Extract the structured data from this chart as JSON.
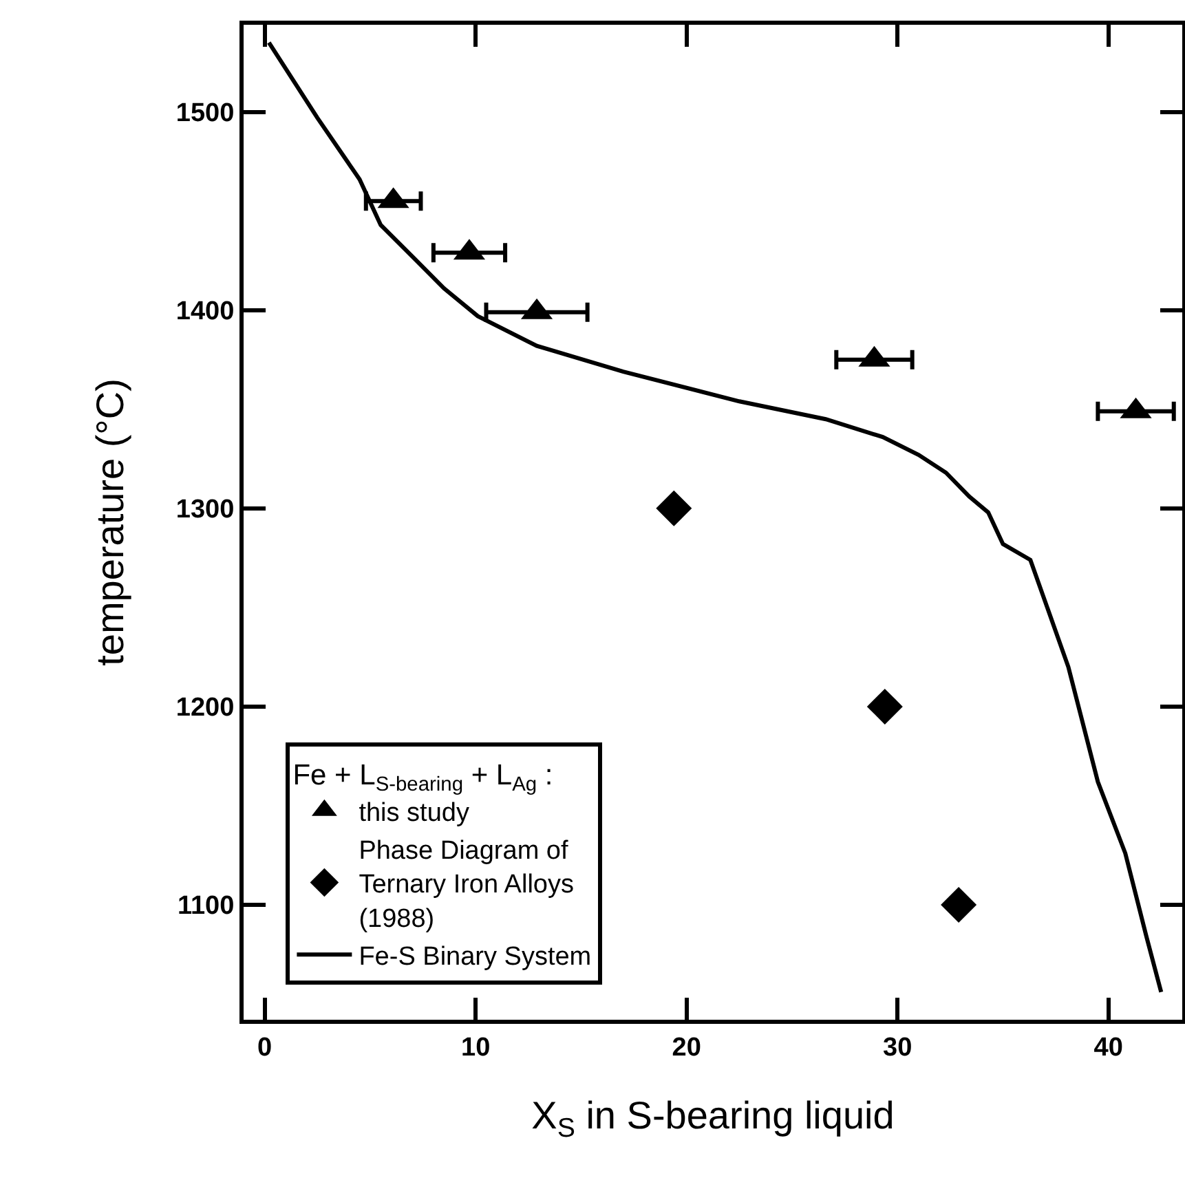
{
  "chart_data": {
    "type": "scatter",
    "xlabel": "X$_{S}$ in S-bearing liquid",
    "ylabel": "temperature (°C)",
    "legend_title": "Fe + L$_{S-bearing}$ + L$_{Ag}$ :",
    "xlim": [
      -1,
      43.5
    ],
    "xticks": [
      0,
      10,
      20,
      30,
      40
    ],
    "ylim": [
      1042,
      1544
    ],
    "yticks": [
      1100,
      1200,
      1300,
      1400,
      1500
    ],
    "grid": false,
    "legend": "bottom left",
    "series": [
      {
        "name": "this study",
        "type": "scatter",
        "marker": "triangle",
        "color": "#000000",
        "x": [
          6.1,
          9.7,
          12.9,
          28.9,
          41.3
        ],
        "values": [
          1455,
          1429,
          1399,
          1375,
          1349
        ],
        "xerrors": [
          1.3,
          1.7,
          2.4,
          1.8,
          1.8
        ]
      },
      {
        "name": "Phase Diagram of\nTernary Iron Alloys\n(1988)",
        "type": "scatter",
        "marker": "diamond",
        "color": "#000000",
        "x": [
          19.4,
          29.4,
          32.9
        ],
        "values": [
          1300,
          1200,
          1100
        ]
      },
      {
        "name": "Fe-S Binary System",
        "type": "line",
        "marker": "none",
        "line_style": "solid",
        "color": "#000000",
        "x": [
          0.2,
          2.5,
          4.5,
          5.5,
          7.1,
          8.5,
          10.1,
          12.9,
          17,
          22.5,
          26.6,
          29.3,
          31,
          32.3,
          33.4,
          34.3,
          35,
          36.3,
          38.1,
          39.5,
          40.8,
          41.8,
          42.5
        ],
        "values": [
          1535,
          1497,
          1466,
          1443,
          1426,
          1411,
          1397,
          1382,
          1369,
          1354,
          1345,
          1336,
          1327,
          1318,
          1306,
          1298,
          1282,
          1274,
          1220,
          1162,
          1126,
          1084,
          1056
        ]
      }
    ]
  }
}
